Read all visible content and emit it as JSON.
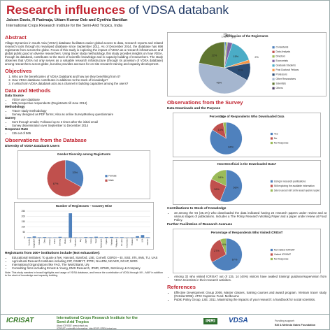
{
  "header": {
    "title_highlight": "Research influences",
    "title_rest": "of VDSA databank",
    "authors": "Jaison Davis, R Padmaja, Uttam Kumar Deb and Cynthia Bantilan",
    "institute": "International Crops Research Institute for the Semi-Arid Tropics, India"
  },
  "abstract": {
    "heading": "Abstract",
    "text": "Village Dynamics in South Asia (VDSA) database facilitates easier global access to data, research reports and related research tools through its revamped database since September 2011. As of December 2014, the database has 698 registrants from across the globe. Focus of this study is exploring the impact of VDSA as a research infrastructure and global public good on diverse researchers. Using tracer study methodology, this study provides insights on how VDSA, through its databank, contributes to the stock of scientific knowledge and in capacity building of researchers. The study observes that VDSA not only serves as a valuable research infrastructure (through its provision of VDSA database) among researchers across globe, but also provides avenues for on-site research training and capacity development."
  },
  "objectives": {
    "heading": "Objectives",
    "items": [
      "Who are the beneficiaries of VDSA Databank and how are they benefiting from it?",
      "How VDSA database contributes in additions to the stock of knowledge?",
      "In what form VDSA databank acts as a channel in building capacities among the users?"
    ]
  },
  "methods": {
    "heading": "Data and Methods",
    "groups": [
      {
        "label": "Data Source",
        "items": [
          "VDSA user database",
          "565 prospective respondents (Registrants till June 2014)"
        ]
      },
      {
        "label": "Methodology",
        "items": [
          "Tracer study methodology",
          "Survey designed as PDF forms; Also as online SurveyMonkey questionnaire"
        ]
      },
      {
        "label": "Survey",
        "items": [
          "Sent through emails; Followed up to 2 times after the initial email",
          "Survey dissemination over September to December 2014"
        ]
      },
      {
        "label": "Response Rate",
        "items": [
          "115 out of 565"
        ]
      }
    ]
  },
  "database": {
    "heading": "Observations from the Database",
    "subheading": "Diversity of VDSA Databank Users",
    "institutions_heading": "Registrants from 300+ institutions include (Not exhaustive):",
    "institutions": [
      "Educational Institutes: To quote a few: Harvard, Stanford, LSE, Cornell, CERDI – EI, SSE, IITs, IIMs, TU, UAS",
      "Agricultural Research Institutes including CIP, CIMMYT, IFPRI, NAARM, NCAER, NCAP, NIRD",
      "International Organizations like FAO, The World Bank, UN",
      "Consulting firms including Ernest & Young, EMS Research, IFMR, KPMG, McKinsey & Company"
    ],
    "note": "Note: This study narrates in broad highlights and usage of VDSA database, and hence the contribution of VDSA through IW – MAF in addition to the stock of knowledge and capacity building."
  },
  "survey": {
    "heading": "Observations from the Survey",
    "subheading": "Data Downloads and the Purpose",
    "contributions_heading": "Contributions to Stock of Knowledge",
    "contributions": [
      "33 among the 94 (35.1%) who downloaded the data indicated having 24 research papers under review and at various stages of publications. Includes a The Policy Research Working Paper and a paper under review at Food Policy."
    ],
    "facilitation_heading": "Further Facilitation of Research Avenues",
    "facilitation": [
      "Among 32 who visited ICRISAT out of 115, 14 (44%) visitors have availed training/ guidance/supervision from VDSA Scientists in their research activities."
    ]
  },
  "references": {
    "heading": "References",
    "items": [
      "Effective Development Group 2006. Master classes, training courses and award program. Vietnam tracer study (October2006). AT02 Capstone Fund. Melbourne",
      "Public Policy Group, LSE. 2011. Maximizing the impacts of your research: a handbook for social scientists."
    ]
  },
  "footer": {
    "logo": "ICRISAT",
    "institute": "International Crops Research Institute for the Semi-Arid Tropics",
    "about": "About ICRISAT: www.icrisat.org",
    "info": "ICRISAT's scientific information: http://EXPLOREit.icrisat.org",
    "irri": "IRRI",
    "vdsa": "VDSA",
    "funding_label": "Funding support:",
    "funder": "Bill & Melinda Gates Foundation"
  },
  "chart_data": [
    {
      "type": "pie",
      "title": "Profession of the Registrants",
      "categories": [
        "Consultants",
        "Data Analysts",
        "Directors",
        "Economists",
        "Graduate Students",
        "Post Doctoral Fellows",
        "Professors",
        "Other Researchers",
        "Scientists",
        "Others"
      ],
      "values": [
        1,
        0,
        1,
        3,
        15,
        2,
        11,
        45,
        22,
        0
      ],
      "value_labels": [
        "1%",
        "0%",
        "1%",
        "3%",
        "15%",
        "2%",
        "11%",
        "45%",
        "22%",
        "0%"
      ],
      "colors": [
        "#4f81bd",
        "#c0504d",
        "#9bbb59",
        "#8064a2",
        "#4bacc6",
        "#f79646",
        "#2c4d75",
        "#a5b6cf",
        "#5f7530",
        "#4d3b62"
      ]
    },
    {
      "type": "pie",
      "title": "Percentage of Respondents Who Downloaded Data",
      "categories": [
        "Yes",
        "No",
        "No Response"
      ],
      "values": [
        84,
        13,
        3
      ],
      "value_labels": [
        "84%",
        "13%",
        "3%"
      ],
      "colors": [
        "#4f81bd",
        "#c0504d",
        "#9bbb59"
      ]
    },
    {
      "type": "pie",
      "title": "How Beneficial is the Downloaded Data?",
      "categories": [
        "Using in research publications",
        "Still exploring the available information",
        "Data not used as it didn't suit the research questions I applied"
      ],
      "values": [
        56,
        26,
        18
      ],
      "value_labels": [
        "56%",
        "26%",
        "18%"
      ],
      "colors": [
        "#4f81bd",
        "#c0504d",
        "#9bbb59"
      ]
    },
    {
      "type": "pie",
      "title": "Gender Diversity among Registrants",
      "categories": [
        "Female",
        "Male"
      ],
      "values": [
        33,
        67
      ],
      "value_labels": [
        "33%",
        "67%"
      ],
      "colors": [
        "#4f81bd",
        "#c0504d"
      ]
    },
    {
      "type": "bar",
      "title": "Number of Registrants – Country Wise",
      "categories": [
        "Australia",
        "Bangladesh",
        "Canada",
        "China",
        "Ethiopia",
        "France",
        "Germany",
        "Ghana",
        "India",
        "Indonesia",
        "Italy",
        "Japan",
        "Kenya",
        "Nepal",
        "Netherlands",
        "Nigeria",
        "Pakistan",
        "Philippines",
        "Sri Lanka",
        "Switzerland",
        "Thailand",
        "UK",
        "USA",
        "Vietnam"
      ],
      "values": [
        5,
        12,
        4,
        6,
        3,
        3,
        8,
        2,
        230,
        3,
        2,
        6,
        5,
        9,
        4,
        6,
        7,
        4,
        5,
        2,
        3,
        14,
        25,
        4
      ],
      "color": "#4f81bd",
      "ylim": [
        0,
        250
      ],
      "yticks": [
        0,
        50,
        100,
        150,
        200,
        250
      ],
      "grid": true
    },
    {
      "type": "pie",
      "title": "Percentage of Respondents Who Visited ICRISAT",
      "categories": [
        "Not visited ICRISAT",
        "Visited ICRISAT",
        "No Response"
      ],
      "values": [
        67,
        27,
        6
      ],
      "value_labels": [
        "67%",
        "27%",
        "6%"
      ],
      "colors": [
        "#4f81bd",
        "#c0504d",
        "#9bbb59"
      ]
    }
  ]
}
